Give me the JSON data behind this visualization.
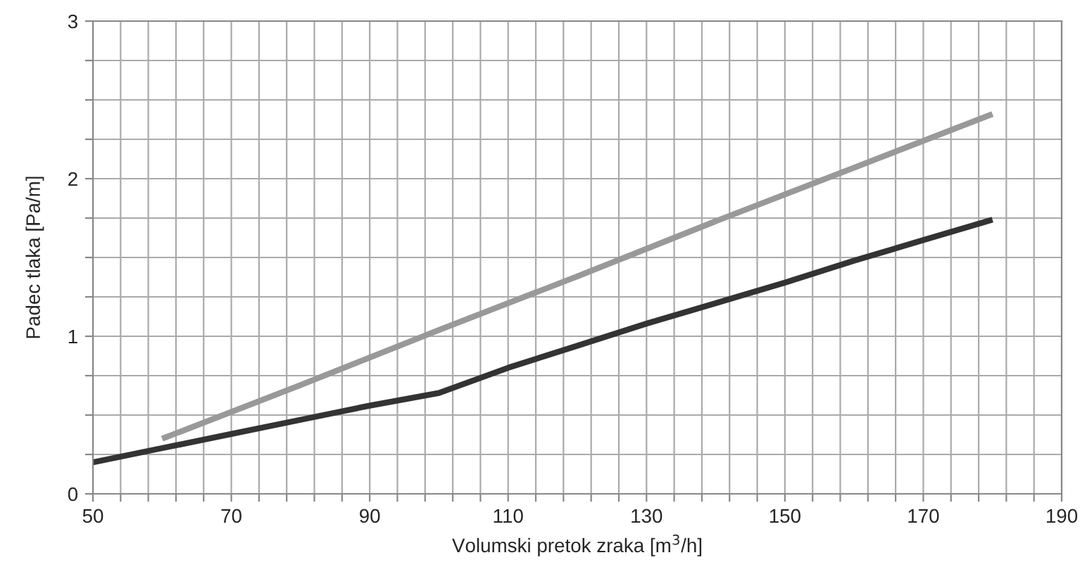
{
  "chart_data": {
    "type": "line",
    "xlabel": "Volumski pretok zraka [m$^{3}$/h]",
    "ylabel": "Padec tlaka [Pa/m]",
    "series": [
      {
        "color": "#999999",
        "x": [
          60,
          80,
          100,
          120,
          140,
          160,
          180
        ],
        "values": [
          0.35,
          0.69,
          1.04,
          1.38,
          1.73,
          2.07,
          2.41
        ]
      },
      {
        "color": "#333333",
        "x": [
          50,
          60,
          70,
          80,
          90,
          100,
          110,
          120,
          130,
          140,
          150,
          160,
          170,
          180
        ],
        "values": [
          0.2,
          0.29,
          0.38,
          0.47,
          0.56,
          0.64,
          0.8,
          0.94,
          1.08,
          1.21,
          1.34,
          1.48,
          1.61,
          1.74
        ]
      }
    ],
    "xlim": [
      50,
      190
    ],
    "ylim": [
      0,
      3
    ],
    "xticks": [
      50,
      {
        "value": 54,
        "label": null
      },
      {
        "value": 58,
        "label": null
      },
      {
        "value": 62,
        "label": null
      },
      {
        "value": 66,
        "label": null
      },
      70,
      {
        "value": 74,
        "label": null
      },
      {
        "value": 78,
        "label": null
      },
      {
        "value": 82,
        "label": null
      },
      {
        "value": 86,
        "label": null
      },
      90,
      {
        "value": 94,
        "label": null
      },
      {
        "value": 98,
        "label": null
      },
      {
        "value": 102,
        "label": null
      },
      {
        "value": 106,
        "label": null
      },
      110,
      {
        "value": 114,
        "label": null
      },
      {
        "value": 118,
        "label": null
      },
      {
        "value": 122,
        "label": null
      },
      {
        "value": 126,
        "label": null
      },
      130,
      {
        "value": 134,
        "label": null
      },
      {
        "value": 138,
        "label": null
      },
      {
        "value": 142,
        "label": null
      },
      {
        "value": 146,
        "label": null
      },
      150,
      {
        "value": 154,
        "label": null
      },
      {
        "value": 158,
        "label": null
      },
      {
        "value": 162,
        "label": null
      },
      {
        "value": 166,
        "label": null
      },
      170,
      {
        "value": 174,
        "label": null
      },
      {
        "value": 178,
        "label": null
      },
      {
        "value": 182,
        "label": null
      },
      {
        "value": 186,
        "label": null
      },
      190
    ],
    "yticks": [
      0,
      {
        "value": 0.25,
        "label": null
      },
      {
        "value": 0.5,
        "label": null
      },
      {
        "value": 0.75,
        "label": null
      },
      1,
      {
        "value": 1.25,
        "label": null
      },
      {
        "value": 1.5,
        "label": null
      },
      {
        "value": 1.75,
        "label": null
      },
      2,
      {
        "value": 2.25,
        "label": null
      },
      {
        "value": 2.5,
        "label": null
      },
      {
        "value": 2.75,
        "label": null
      },
      3
    ],
    "grid": true,
    "line_style": "solid",
    "marker": "none"
  }
}
